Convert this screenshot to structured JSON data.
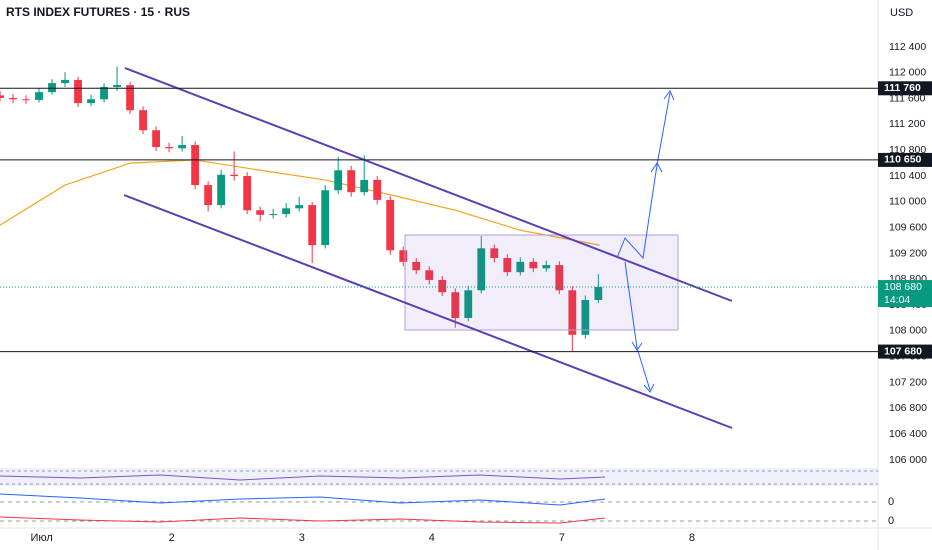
{
  "chart_data": {
    "type": "candlestick",
    "title": "RTS INDEX FUTURES · 15 · RUS",
    "currency": "USD",
    "up_color": "#089981",
    "down_color": "#f23645",
    "x": [
      0.68,
      0.78,
      0.88,
      0.98,
      1.08,
      1.18,
      1.28,
      1.38,
      1.48,
      1.58,
      1.68,
      1.78,
      1.88,
      1.98,
      2.08,
      2.18,
      2.28,
      2.38,
      2.48,
      2.58,
      2.68,
      2.78,
      2.88,
      2.98,
      3.08,
      3.18,
      3.28,
      3.38,
      3.48,
      3.58,
      3.68,
      3.78,
      3.88,
      3.98,
      4.08,
      4.18,
      4.28,
      4.38,
      4.48,
      4.58,
      4.68,
      4.78,
      4.88,
      4.98,
      5.08,
      5.18,
      5.28
    ],
    "candles": [
      [
        111650,
        111720,
        111560,
        111610
      ],
      [
        111610,
        111670,
        111530,
        111590
      ],
      [
        111590,
        111650,
        111520,
        111580
      ],
      [
        111580,
        111760,
        111540,
        111700
      ],
      [
        111700,
        111900,
        111660,
        111840
      ],
      [
        111840,
        112010,
        111780,
        111890
      ],
      [
        111890,
        111940,
        111470,
        111530
      ],
      [
        111530,
        111660,
        111480,
        111590
      ],
      [
        111590,
        111840,
        111540,
        111780
      ],
      [
        111780,
        112100,
        111720,
        111810
      ],
      [
        111810,
        111860,
        111360,
        111420
      ],
      [
        111420,
        111480,
        111050,
        111110
      ],
      [
        111110,
        111170,
        110790,
        110850
      ],
      [
        110850,
        110920,
        110770,
        110830
      ],
      [
        110830,
        111020,
        110780,
        110880
      ],
      [
        110880,
        110940,
        110200,
        110260
      ],
      [
        110260,
        110320,
        109850,
        109950
      ],
      [
        109950,
        110500,
        109900,
        110420
      ],
      [
        110420,
        110780,
        110330,
        110400
      ],
      [
        110400,
        110460,
        109810,
        109870
      ],
      [
        109870,
        109930,
        109700,
        109800
      ],
      [
        109800,
        109890,
        109740,
        109810
      ],
      [
        109810,
        109980,
        109760,
        109900
      ],
      [
        109900,
        110080,
        109850,
        109950
      ],
      [
        109950,
        110000,
        109050,
        109330
      ],
      [
        109330,
        110260,
        109280,
        110180
      ],
      [
        110180,
        110700,
        110120,
        110490
      ],
      [
        110490,
        110560,
        110080,
        110150
      ],
      [
        110150,
        110720,
        110100,
        110340
      ],
      [
        110340,
        110400,
        109960,
        110030
      ],
      [
        110030,
        110090,
        109180,
        109250
      ],
      [
        109250,
        109310,
        109000,
        109070
      ],
      [
        109070,
        109130,
        108880,
        108940
      ],
      [
        108940,
        109000,
        108720,
        108790
      ],
      [
        108790,
        108850,
        108540,
        108600
      ],
      [
        108600,
        108660,
        108050,
        108200
      ],
      [
        108200,
        108700,
        108150,
        108630
      ],
      [
        108630,
        109470,
        108580,
        109280
      ],
      [
        109280,
        109340,
        109060,
        109130
      ],
      [
        109130,
        109190,
        108850,
        108910
      ],
      [
        108910,
        109140,
        108860,
        109070
      ],
      [
        109070,
        109130,
        108910,
        108970
      ],
      [
        108970,
        109090,
        108920,
        109020
      ],
      [
        109020,
        109080,
        108570,
        108630
      ],
      [
        108630,
        108690,
        107680,
        107940
      ],
      [
        107940,
        108550,
        107880,
        108480
      ],
      [
        108480,
        108880,
        108430,
        108680
      ]
    ],
    "ma": {
      "color": "#f5a623",
      "x": [
        0.68,
        1.18,
        1.68,
        2.18,
        2.68,
        3.18,
        3.68,
        4.18,
        4.68,
        5.29
      ],
      "values": [
        109640,
        110260,
        110600,
        110650,
        110490,
        110340,
        110110,
        109870,
        109560,
        109330
      ]
    },
    "xlim": [
      0.68,
      7.43
    ],
    "xticks": [
      {
        "value": 1,
        "label": "Июл"
      },
      2,
      3,
      4,
      {
        "value": 5,
        "label": "7"
      },
      {
        "value": 6,
        "label": "8"
      }
    ],
    "ylim": [
      105876,
      113128
    ],
    "yticks": [
      {
        "value": 112400,
        "label": "112 400"
      },
      {
        "value": 112000,
        "label": "112 000"
      },
      {
        "value": 111600,
        "label": "111 600"
      },
      {
        "value": 111200,
        "label": "111 200"
      },
      {
        "value": 110800,
        "label": "110 800"
      },
      {
        "value": 110400,
        "label": "110 400"
      },
      {
        "value": 110000,
        "label": "110 000"
      },
      {
        "value": 109600,
        "label": "109 600"
      },
      {
        "value": 109200,
        "label": "109 200"
      },
      {
        "value": 108800,
        "label": "108 800"
      },
      {
        "value": 108400,
        "label": "108 400"
      },
      {
        "value": 108000,
        "label": "108 000"
      },
      {
        "value": 107600,
        "label": "107 600"
      },
      {
        "value": 107200,
        "label": "107 200"
      },
      {
        "value": 106800,
        "label": "106 800"
      },
      {
        "value": 106400,
        "label": "106 400"
      },
      {
        "value": 106000,
        "label": "106 000"
      }
    ],
    "hlines": [
      {
        "value": 111760,
        "label": "111 760"
      },
      {
        "value": 110650,
        "label": "110 650"
      },
      {
        "value": 107680,
        "label": "107 680"
      }
    ],
    "last_price": {
      "value": 108680,
      "label": "108 680",
      "countdown": "14:04",
      "color": "#089981"
    },
    "indicator_labels": [
      "0",
      "0"
    ]
  }
}
